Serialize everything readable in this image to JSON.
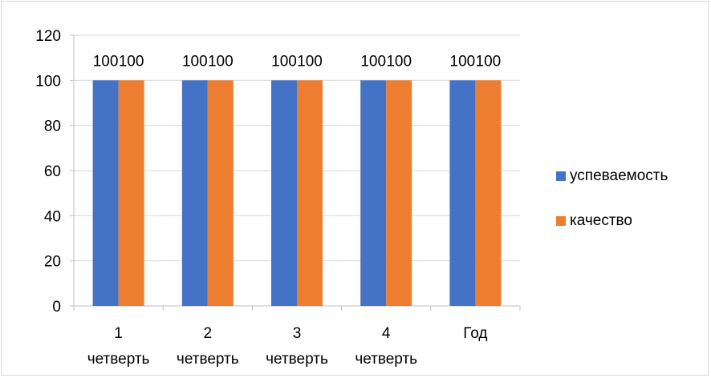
{
  "chart_data": {
    "type": "bar",
    "categories": [
      [
        "1",
        "четверть"
      ],
      [
        "2",
        "четверть"
      ],
      [
        "3",
        "четверть"
      ],
      [
        "4",
        "четверть"
      ],
      [
        "Год",
        ""
      ]
    ],
    "series": [
      {
        "name": "успеваемость",
        "color": "#4472C4",
        "values": [
          100,
          100,
          100,
          100,
          100
        ]
      },
      {
        "name": "качество",
        "color": "#ED7D31",
        "values": [
          100,
          100,
          100,
          100,
          100
        ]
      }
    ],
    "ylim": [
      0,
      120
    ],
    "yticks": [
      0,
      20,
      40,
      60,
      80,
      100,
      120
    ],
    "grid": true,
    "data_labels": true,
    "legend_position": "right"
  }
}
